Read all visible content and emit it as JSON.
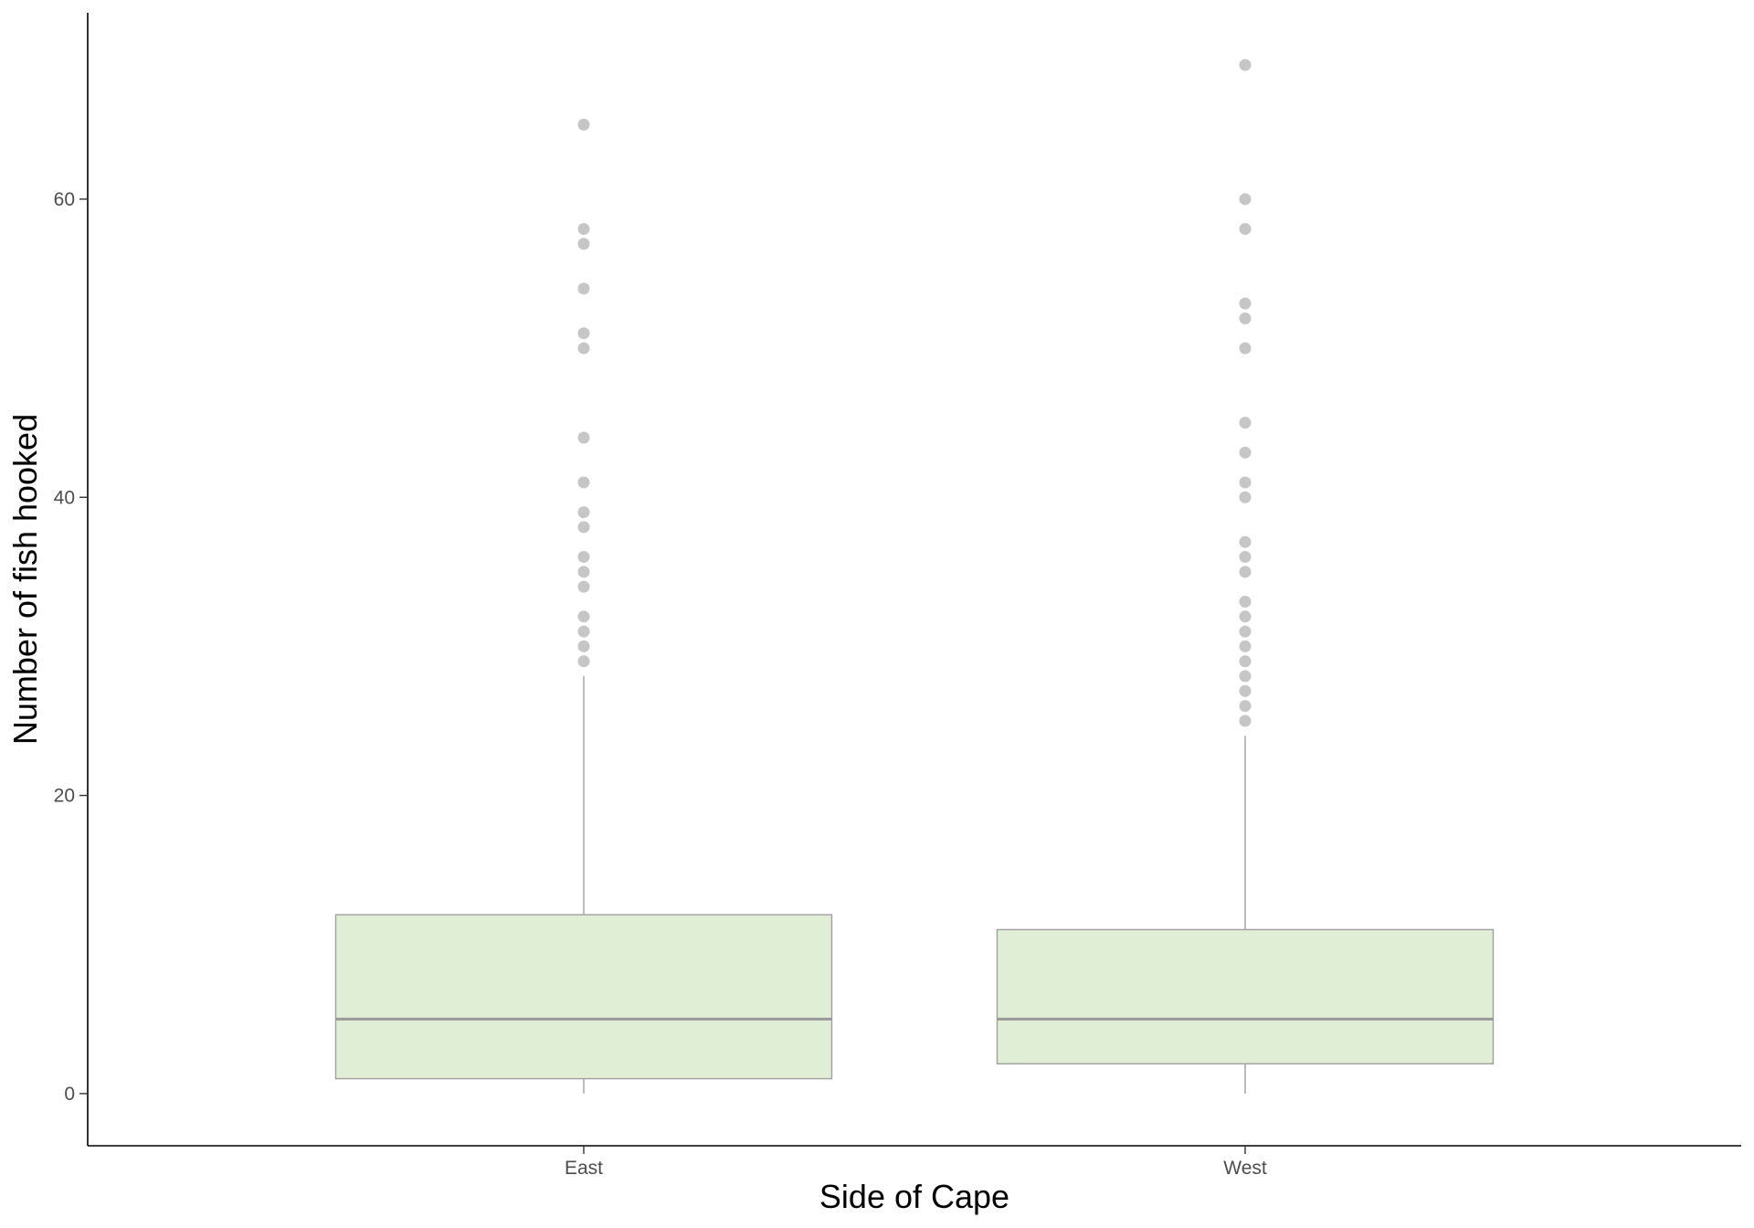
{
  "chart_data": {
    "type": "boxplot",
    "title": "",
    "xlabel": "Side of Cape",
    "ylabel": "Number of fish hooked",
    "categories": [
      "East",
      "West"
    ],
    "ylim": [
      -3.5,
      72.5
    ],
    "yticks": [
      0,
      20,
      40,
      60
    ],
    "ytick_labels": [
      "0",
      "20",
      "40",
      "60"
    ],
    "grid": false,
    "legend": "none",
    "boxes": [
      {
        "category": "East",
        "whisker_low": 0,
        "q1": 1,
        "median": 5,
        "q3": 12,
        "whisker_high": 28,
        "outliers": [
          29,
          30,
          31,
          32,
          34,
          35,
          36,
          38,
          39,
          41,
          44,
          50,
          51,
          54,
          57,
          58,
          65
        ]
      },
      {
        "category": "West",
        "whisker_low": 0,
        "q1": 2,
        "median": 5,
        "q3": 11,
        "whisker_high": 24,
        "outliers": [
          25,
          26,
          27,
          28,
          29,
          30,
          31,
          32,
          33,
          35,
          36,
          37,
          40,
          41,
          43,
          45,
          50,
          52,
          53,
          58,
          60,
          69
        ]
      }
    ],
    "colors": {
      "box_fill": "#e0eed6",
      "box_stroke": "#a0a0a0",
      "median": "#999999",
      "outlier": "#b3b3b3",
      "axis": "#000000"
    }
  }
}
